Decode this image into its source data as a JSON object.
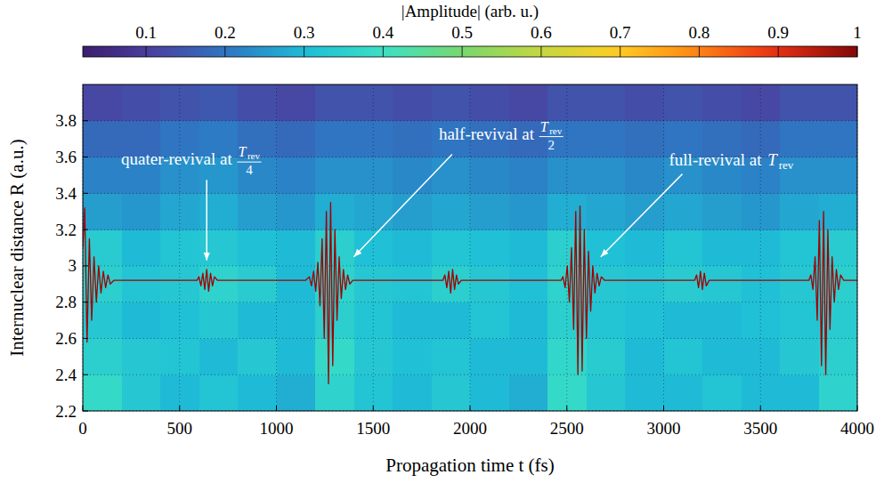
{
  "chart_data": {
    "type": "heatmap",
    "x_label": "Propagation time t (fs)",
    "y_label": "Internuclear distance R (a.u.)",
    "xlim": [
      0,
      4000
    ],
    "ylim": [
      2.2,
      4.0
    ],
    "xticks": [
      0,
      500,
      1000,
      1500,
      2000,
      2500,
      3000,
      3500,
      4000
    ],
    "yticks": [
      2.2,
      2.4,
      2.6,
      2.8,
      3,
      3.2,
      3.4,
      3.6,
      3.8
    ],
    "grid": true,
    "heatmap": {
      "x_bins": [
        0,
        200,
        400,
        600,
        800,
        1000,
        1200,
        1400,
        1600,
        1800,
        2000,
        2200,
        2400,
        2600,
        2800,
        3000,
        3200,
        3400,
        3600,
        3800,
        4000
      ],
      "y_bins": [
        2.2,
        2.4,
        2.6,
        2.8,
        3.0,
        3.2,
        3.4,
        3.6,
        3.8,
        4.0
      ],
      "cells": [
        [
          0.38,
          0.33,
          0.3,
          0.32,
          0.3,
          0.28,
          0.36,
          0.32,
          0.3,
          0.33,
          0.3,
          0.28,
          0.38,
          0.33,
          0.3,
          0.3,
          0.32,
          0.3,
          0.3,
          0.36
        ],
        [
          0.35,
          0.33,
          0.32,
          0.3,
          0.33,
          0.3,
          0.38,
          0.33,
          0.31,
          0.32,
          0.3,
          0.3,
          0.37,
          0.34,
          0.3,
          0.32,
          0.3,
          0.3,
          0.33,
          0.35
        ],
        [
          0.33,
          0.3,
          0.31,
          0.33,
          0.3,
          0.3,
          0.35,
          0.32,
          0.3,
          0.3,
          0.32,
          0.3,
          0.35,
          0.32,
          0.31,
          0.3,
          0.3,
          0.31,
          0.32,
          0.34
        ],
        [
          0.35,
          0.32,
          0.33,
          0.36,
          0.34,
          0.3,
          0.36,
          0.33,
          0.32,
          0.35,
          0.33,
          0.31,
          0.36,
          0.33,
          0.32,
          0.34,
          0.33,
          0.31,
          0.33,
          0.35
        ],
        [
          0.34,
          0.3,
          0.32,
          0.33,
          0.31,
          0.3,
          0.35,
          0.31,
          0.3,
          0.32,
          0.31,
          0.3,
          0.35,
          0.31,
          0.3,
          0.32,
          0.3,
          0.3,
          0.32,
          0.34
        ],
        [
          0.26,
          0.25,
          0.27,
          0.28,
          0.26,
          0.25,
          0.28,
          0.27,
          0.26,
          0.27,
          0.26,
          0.25,
          0.28,
          0.27,
          0.26,
          0.27,
          0.26,
          0.25,
          0.27,
          0.28
        ],
        [
          0.22,
          0.22,
          0.24,
          0.25,
          0.23,
          0.22,
          0.24,
          0.24,
          0.23,
          0.24,
          0.23,
          0.22,
          0.24,
          0.24,
          0.23,
          0.24,
          0.23,
          0.22,
          0.24,
          0.24
        ],
        [
          0.18,
          0.18,
          0.2,
          0.21,
          0.19,
          0.18,
          0.2,
          0.2,
          0.19,
          0.2,
          0.19,
          0.18,
          0.2,
          0.2,
          0.19,
          0.2,
          0.19,
          0.18,
          0.2,
          0.2
        ],
        [
          0.12,
          0.13,
          0.14,
          0.15,
          0.13,
          0.12,
          0.14,
          0.14,
          0.13,
          0.14,
          0.13,
          0.12,
          0.14,
          0.14,
          0.13,
          0.14,
          0.13,
          0.12,
          0.14,
          0.14
        ]
      ]
    },
    "colorbar": {
      "title": "|Amplitude| (arb. u.)",
      "lim": [
        0.02,
        1
      ],
      "ticks": [
        0.1,
        0.2,
        0.3,
        0.4,
        0.5,
        0.6,
        0.7,
        0.8,
        0.9,
        1
      ]
    },
    "series": [
      {
        "type": "line",
        "color": "#a00000",
        "x": [
          0,
          10,
          22,
          34,
          46,
          58,
          70,
          82,
          94,
          106,
          118,
          130,
          142,
          160,
          300,
          450,
          590,
          600,
          610,
          620,
          630,
          640,
          650,
          660,
          670,
          680,
          695,
          900,
          1150,
          1170,
          1181,
          1192,
          1203,
          1214,
          1225,
          1236,
          1247,
          1258,
          1269,
          1280,
          1291,
          1302,
          1313,
          1324,
          1335,
          1346,
          1357,
          1368,
          1379,
          1395,
          1600,
          1860,
          1870,
          1880,
          1890,
          1900,
          1910,
          1920,
          1930,
          1940,
          1955,
          2200,
          2470,
          2480,
          2491,
          2502,
          2513,
          2524,
          2535,
          2546,
          2557,
          2568,
          2579,
          2590,
          2601,
          2612,
          2623,
          2634,
          2645,
          2656,
          2667,
          2678,
          2695,
          2900,
          3160,
          3170,
          3180,
          3190,
          3200,
          3210,
          3220,
          3235,
          3500,
          3750,
          3760,
          3771,
          3782,
          3793,
          3804,
          3815,
          3826,
          3837,
          3848,
          3859,
          3870,
          3881,
          3892,
          3903,
          3914,
          3930,
          4000
        ],
        "values": [
          3.1,
          3.32,
          2.58,
          3.15,
          2.7,
          3.05,
          2.8,
          3.0,
          2.85,
          2.97,
          2.88,
          2.95,
          2.9,
          2.92,
          2.92,
          2.92,
          2.92,
          2.94,
          2.89,
          2.96,
          2.87,
          2.98,
          2.86,
          2.96,
          2.89,
          2.94,
          2.92,
          2.92,
          2.92,
          2.94,
          2.89,
          2.97,
          2.86,
          3.02,
          2.78,
          3.15,
          2.6,
          3.3,
          2.35,
          3.35,
          2.45,
          3.2,
          2.7,
          3.05,
          2.82,
          2.98,
          2.87,
          2.95,
          2.9,
          2.92,
          2.92,
          2.92,
          2.95,
          2.88,
          2.97,
          2.85,
          2.98,
          2.87,
          2.95,
          2.9,
          2.92,
          2.92,
          2.92,
          2.94,
          2.88,
          3.0,
          2.8,
          3.1,
          2.65,
          3.3,
          2.4,
          3.33,
          2.42,
          3.2,
          2.6,
          3.08,
          2.75,
          3.0,
          2.85,
          2.96,
          2.89,
          2.94,
          2.92,
          2.92,
          2.92,
          2.95,
          2.88,
          2.97,
          2.87,
          2.96,
          2.89,
          2.92,
          2.92,
          2.92,
          2.95,
          2.87,
          3.05,
          2.7,
          3.25,
          2.45,
          3.3,
          2.4,
          3.2,
          2.65,
          3.05,
          2.8,
          2.98,
          2.87,
          2.95,
          2.92,
          2.92
        ]
      }
    ],
    "annotations": [
      {
        "text": "quater-revival at",
        "symbol": "T",
        "subscript": "rev",
        "denominator": "4",
        "label_at": [
          560,
          3.58
        ],
        "point": [
          640,
          3.03
        ]
      },
      {
        "text": "half-revival at",
        "symbol": "T",
        "subscript": "rev",
        "denominator": "2",
        "label_at": [
          2160,
          3.72
        ],
        "point": [
          1400,
          3.05
        ]
      },
      {
        "text": "full-revival at",
        "symbol": "T",
        "subscript": "rev",
        "label_at": [
          3350,
          3.58
        ],
        "point": [
          2675,
          3.05
        ]
      }
    ]
  }
}
